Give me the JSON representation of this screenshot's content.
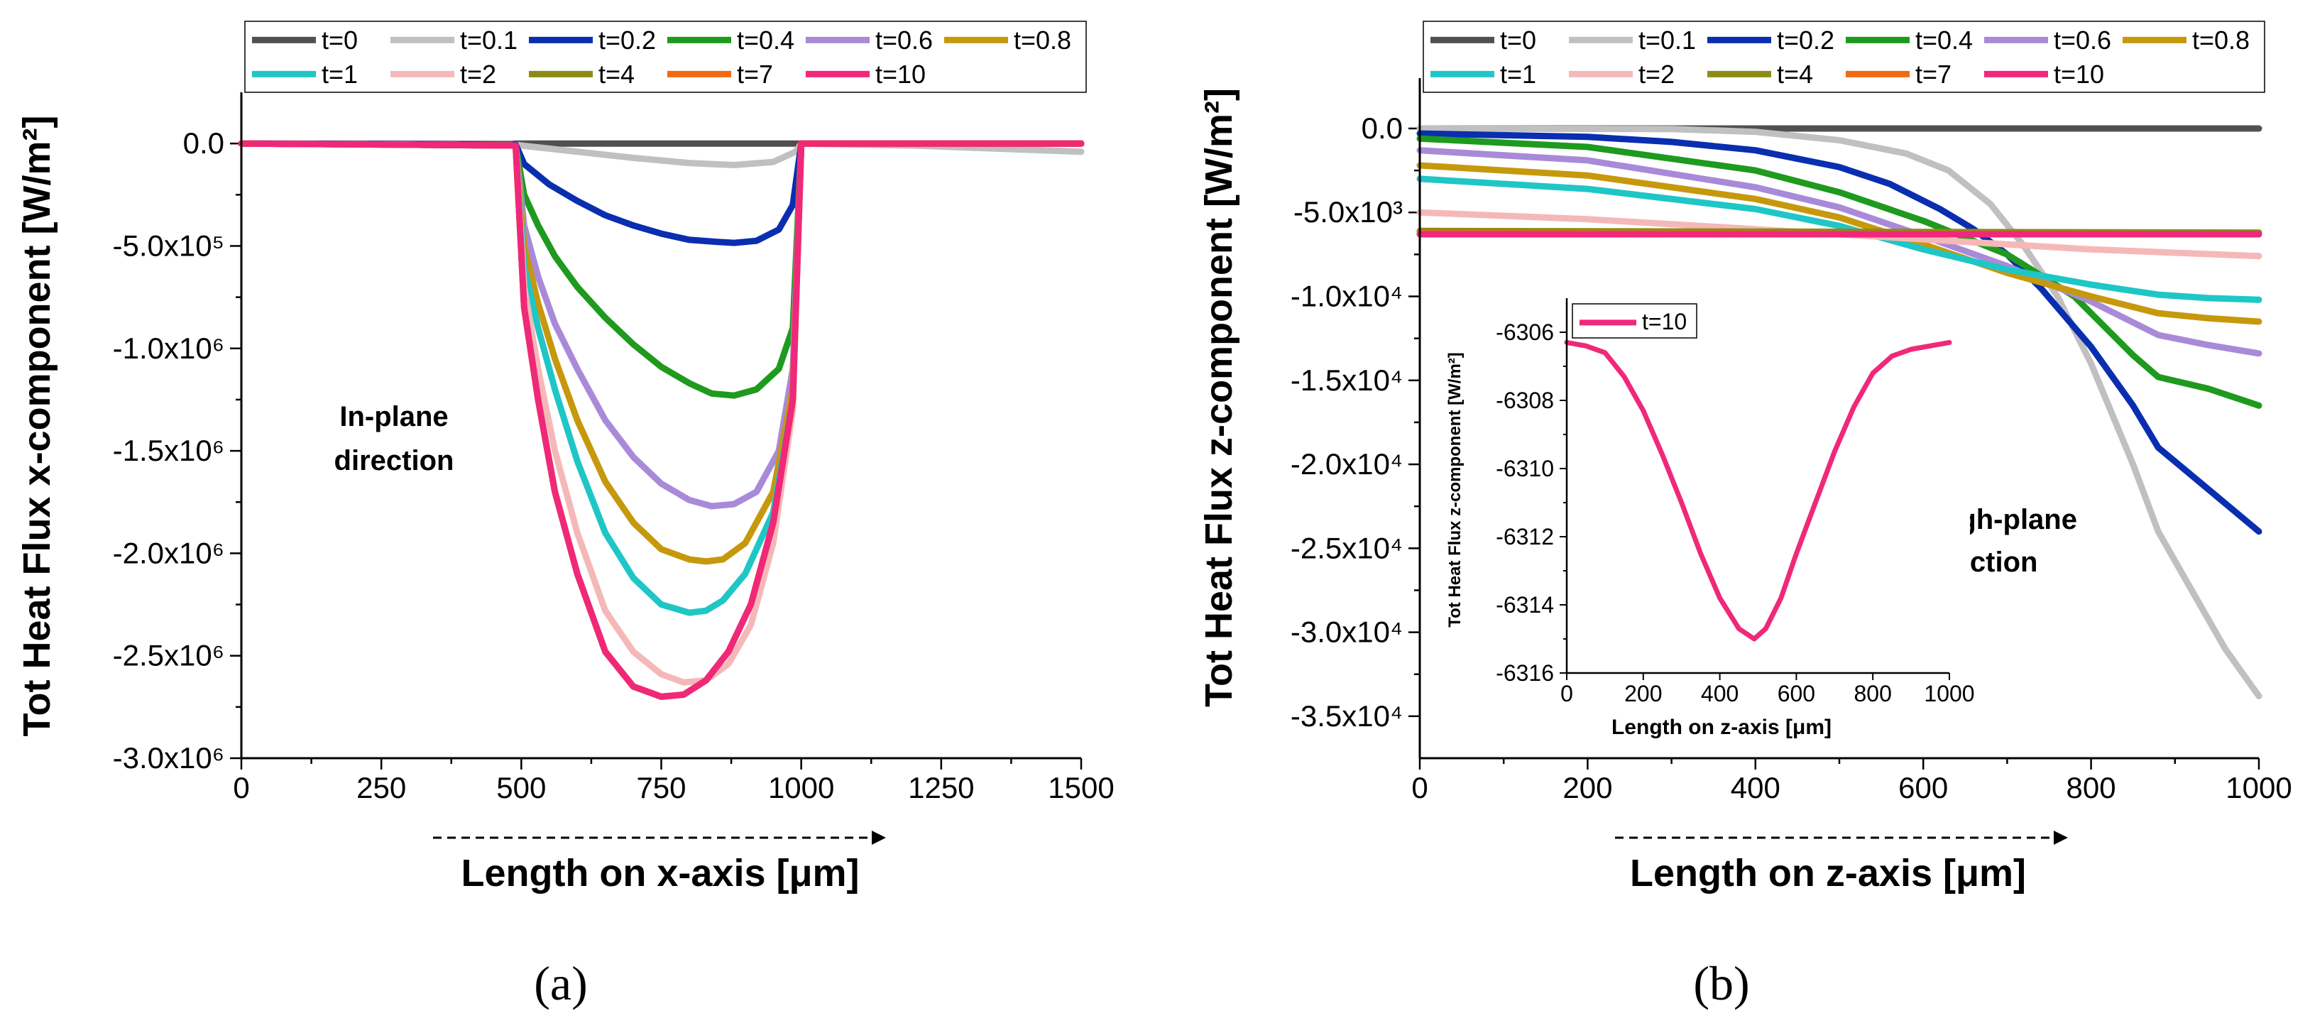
{
  "chart_data": [
    {
      "type": "line",
      "panel_label": "(a)",
      "xlabel": "Length on x-axis [μm]",
      "ylabel": "Tot Heat Flux x-component [W/m²]",
      "xlim": [
        0,
        1500
      ],
      "ylim": [
        -3000000,
        250000
      ],
      "xticks": [
        0,
        250,
        500,
        750,
        1000,
        1250,
        1500
      ],
      "xtick_labels": [
        "0",
        "250",
        "500",
        "750",
        "1000",
        "1250",
        "1500"
      ],
      "yticks": [
        0,
        -500000,
        -1000000,
        -1500000,
        -2000000,
        -2500000,
        -3000000
      ],
      "ytick_labels": [
        "0.0",
        "-5.0x10⁵",
        "-1.0x10⁶",
        "-1.5x10⁶",
        "-2.0x10⁶",
        "-2.5x10⁶",
        "-3.0x10⁶"
      ],
      "annotation": [
        "In-plane",
        "direction"
      ],
      "legend_location": "top",
      "series": [
        {
          "name": "t=0",
          "color": "#505050",
          "x": [
            0,
            1500
          ],
          "y": [
            0,
            0
          ]
        },
        {
          "name": "t=0.1",
          "color": "#c0c0c0",
          "x": [
            0,
            480,
            500,
            600,
            700,
            800,
            880,
            950,
            990,
            1000,
            1200,
            1500
          ],
          "y": [
            0,
            0,
            -10000,
            -40000,
            -70000,
            -95000,
            -105000,
            -90000,
            -40000,
            0,
            -10000,
            -40000
          ]
        },
        {
          "name": "t=0.2",
          "color": "#0a2eb0",
          "x": [
            0,
            490,
            505,
            550,
            600,
            650,
            700,
            750,
            800,
            850,
            880,
            920,
            960,
            985,
            1000,
            1500
          ],
          "y": [
            0,
            -5000,
            -100000,
            -200000,
            -280000,
            -350000,
            -400000,
            -440000,
            -470000,
            -480000,
            -485000,
            -475000,
            -420000,
            -300000,
            0,
            0
          ]
        },
        {
          "name": "t=0.4",
          "color": "#1e9a1e",
          "x": [
            0,
            490,
            505,
            530,
            560,
            600,
            650,
            700,
            750,
            800,
            840,
            880,
            920,
            960,
            985,
            1000,
            1500
          ],
          "y": [
            0,
            -10000,
            -250000,
            -400000,
            -550000,
            -700000,
            -850000,
            -980000,
            -1090000,
            -1170000,
            -1220000,
            -1230000,
            -1200000,
            -1100000,
            -900000,
            0,
            0
          ]
        },
        {
          "name": "t=0.6",
          "color": "#a98ad8",
          "x": [
            0,
            490,
            505,
            530,
            560,
            600,
            650,
            700,
            750,
            800,
            840,
            880,
            920,
            960,
            985,
            1000,
            1500
          ],
          "y": [
            0,
            -10000,
            -400000,
            -650000,
            -880000,
            -1100000,
            -1350000,
            -1530000,
            -1660000,
            -1740000,
            -1770000,
            -1760000,
            -1700000,
            -1500000,
            -1100000,
            0,
            0
          ]
        },
        {
          "name": "t=0.8",
          "color": "#c6980c",
          "x": [
            0,
            490,
            505,
            530,
            560,
            600,
            650,
            700,
            750,
            800,
            830,
            860,
            900,
            950,
            985,
            1000,
            1500
          ],
          "y": [
            0,
            -10000,
            -500000,
            -780000,
            -1050000,
            -1350000,
            -1650000,
            -1850000,
            -1980000,
            -2030000,
            -2040000,
            -2030000,
            -1950000,
            -1700000,
            -1200000,
            0,
            0
          ]
        },
        {
          "name": "t=1",
          "color": "#1fc6c6",
          "x": [
            0,
            490,
            505,
            530,
            560,
            600,
            650,
            700,
            750,
            800,
            830,
            860,
            900,
            950,
            985,
            1000,
            1500
          ],
          "y": [
            0,
            -10000,
            -600000,
            -900000,
            -1200000,
            -1550000,
            -1900000,
            -2120000,
            -2250000,
            -2290000,
            -2280000,
            -2230000,
            -2100000,
            -1800000,
            -1250000,
            0,
            0
          ]
        },
        {
          "name": "t=2",
          "color": "#f5b8b8",
          "x": [
            0,
            490,
            505,
            530,
            560,
            600,
            650,
            700,
            750,
            790,
            830,
            870,
            910,
            950,
            985,
            1000,
            1500
          ],
          "y": [
            0,
            -10000,
            -700000,
            -1100000,
            -1500000,
            -1900000,
            -2280000,
            -2480000,
            -2590000,
            -2630000,
            -2620000,
            -2540000,
            -2350000,
            -1950000,
            -1300000,
            0,
            0
          ]
        },
        {
          "name": "t=4",
          "color": "#8c8c14",
          "x": [
            0,
            490,
            505,
            530,
            560,
            600,
            650,
            700,
            750,
            790,
            830,
            870,
            910,
            950,
            985,
            1000,
            1500
          ],
          "y": [
            0,
            -10000,
            -800000,
            -1250000,
            -1700000,
            -2100000,
            -2480000,
            -2650000,
            -2700000,
            -2690000,
            -2620000,
            -2480000,
            -2250000,
            -1850000,
            -1250000,
            0,
            0
          ]
        },
        {
          "name": "t=7",
          "color": "#f26a10",
          "x": [
            0,
            490,
            505,
            530,
            560,
            600,
            650,
            700,
            750,
            790,
            830,
            870,
            910,
            950,
            985,
            1000,
            1500
          ],
          "y": [
            0,
            -10000,
            -800000,
            -1250000,
            -1700000,
            -2100000,
            -2480000,
            -2650000,
            -2700000,
            -2690000,
            -2620000,
            -2480000,
            -2250000,
            -1850000,
            -1250000,
            0,
            0
          ]
        },
        {
          "name": "t=10",
          "color": "#f0287a",
          "x": [
            0,
            490,
            505,
            530,
            560,
            600,
            650,
            700,
            750,
            790,
            830,
            870,
            910,
            950,
            985,
            1000,
            1500
          ],
          "y": [
            0,
            -10000,
            -800000,
            -1250000,
            -1700000,
            -2100000,
            -2480000,
            -2650000,
            -2700000,
            -2690000,
            -2620000,
            -2480000,
            -2250000,
            -1850000,
            -1250000,
            0,
            0
          ]
        }
      ]
    },
    {
      "type": "line",
      "panel_label": "(b)",
      "xlabel": "Length on z-axis [μm]",
      "ylabel": "Tot Heat Flux z-component [W/m²]",
      "xlim": [
        0,
        1000
      ],
      "ylim": [
        -37500,
        3000
      ],
      "xticks": [
        0,
        200,
        400,
        600,
        800,
        1000
      ],
      "xtick_labels": [
        "0",
        "200",
        "400",
        "600",
        "800",
        "1000"
      ],
      "yticks": [
        0,
        -5000,
        -10000,
        -15000,
        -20000,
        -25000,
        -30000,
        -35000
      ],
      "ytick_labels": [
        "0.0",
        "-5.0x10³",
        "-1.0x10⁴",
        "-1.5x10⁴",
        "-2.0x10⁴",
        "-2.5x10⁴",
        "-3.0x10⁴",
        "-3.5x10⁴"
      ],
      "annotation": [
        "Through-plane",
        "direction"
      ],
      "legend_location": "top",
      "series": [
        {
          "name": "t=0",
          "color": "#505050",
          "x": [
            0,
            1000
          ],
          "y": [
            0,
            0
          ]
        },
        {
          "name": "t=0.1",
          "color": "#c0c0c0",
          "x": [
            0,
            300,
            400,
            500,
            580,
            630,
            680,
            720,
            760,
            800,
            850,
            880,
            920,
            960,
            1000
          ],
          "y": [
            0,
            -30,
            -200,
            -700,
            -1500,
            -2500,
            -4500,
            -7000,
            -10000,
            -14000,
            -20000,
            -24000,
            -27500,
            -31000,
            -33800
          ]
        },
        {
          "name": "t=0.2",
          "color": "#0a2eb0",
          "x": [
            0,
            200,
            300,
            400,
            500,
            560,
            620,
            660,
            700,
            740,
            800,
            850,
            880,
            940,
            1000
          ],
          "y": [
            -300,
            -500,
            -800,
            -1300,
            -2300,
            -3300,
            -4800,
            -6000,
            -7500,
            -9500,
            -13000,
            -16500,
            -19000,
            -21500,
            -24000
          ]
        },
        {
          "name": "t=0.4",
          "color": "#1e9a1e",
          "x": [
            0,
            200,
            400,
            500,
            600,
            700,
            780,
            850,
            880,
            940,
            1000
          ],
          "y": [
            -600,
            -1100,
            -2500,
            -3800,
            -5500,
            -7500,
            -10000,
            -13500,
            -14800,
            -15500,
            -16500
          ]
        },
        {
          "name": "t=0.6",
          "color": "#a98ad8",
          "x": [
            0,
            200,
            400,
            500,
            600,
            700,
            800,
            880,
            940,
            1000
          ],
          "y": [
            -1300,
            -1900,
            -3500,
            -4700,
            -6400,
            -8200,
            -10300,
            -12300,
            -12900,
            -13400
          ]
        },
        {
          "name": "t=0.8",
          "color": "#c6980c",
          "x": [
            0,
            200,
            400,
            500,
            600,
            700,
            800,
            880,
            940,
            1000
          ],
          "y": [
            -2200,
            -2800,
            -4200,
            -5300,
            -6900,
            -8600,
            -10000,
            -11000,
            -11300,
            -11500
          ]
        },
        {
          "name": "t=1",
          "color": "#1fc6c6",
          "x": [
            0,
            200,
            400,
            500,
            600,
            700,
            800,
            880,
            940,
            1000
          ],
          "y": [
            -3000,
            -3600,
            -4800,
            -5800,
            -7200,
            -8400,
            -9300,
            -9900,
            -10100,
            -10200
          ]
        },
        {
          "name": "t=2",
          "color": "#f5b8b8",
          "x": [
            0,
            200,
            400,
            600,
            800,
            1000
          ],
          "y": [
            -5000,
            -5400,
            -6000,
            -6600,
            -7200,
            -7600
          ]
        },
        {
          "name": "t=4",
          "color": "#8c8c14",
          "x": [
            0,
            1000
          ],
          "y": [
            -6100,
            -6200
          ]
        },
        {
          "name": "t=7",
          "color": "#f26a10",
          "x": [
            0,
            1000
          ],
          "y": [
            -6250,
            -6300
          ]
        },
        {
          "name": "t=10",
          "color": "#f0287a",
          "x": [
            0,
            1000
          ],
          "y": [
            -6300,
            -6300
          ]
        }
      ]
    },
    {
      "type": "line",
      "role": "inset of panel (b)",
      "xlabel": "Length on z-axis [μm]",
      "ylabel": "Tot Heat Flux z-component [W/m²]",
      "xlim": [
        0,
        1000
      ],
      "ylim": [
        -6316,
        -6305
      ],
      "xticks": [
        0,
        200,
        400,
        600,
        800,
        1000
      ],
      "xtick_labels": [
        "0",
        "200",
        "400",
        "600",
        "800",
        "1000"
      ],
      "yticks": [
        -6306,
        -6308,
        -6310,
        -6312,
        -6314,
        -6316
      ],
      "ytick_labels": [
        "-6306",
        "-6308",
        "-6310",
        "-6312",
        "-6314",
        "-6316"
      ],
      "legend_location": "top-left",
      "series": [
        {
          "name": "t=10",
          "color": "#f0287a",
          "x": [
            0,
            50,
            100,
            150,
            200,
            250,
            300,
            350,
            400,
            450,
            490,
            520,
            560,
            600,
            650,
            700,
            750,
            800,
            850,
            900,
            1000
          ],
          "y": [
            -6306.3,
            -6306.4,
            -6306.6,
            -6307.3,
            -6308.3,
            -6309.6,
            -6311.0,
            -6312.5,
            -6313.8,
            -6314.7,
            -6315.0,
            -6314.7,
            -6313.8,
            -6312.5,
            -6311.0,
            -6309.5,
            -6308.2,
            -6307.2,
            -6306.7,
            -6306.5,
            -6306.3
          ]
        }
      ]
    }
  ]
}
